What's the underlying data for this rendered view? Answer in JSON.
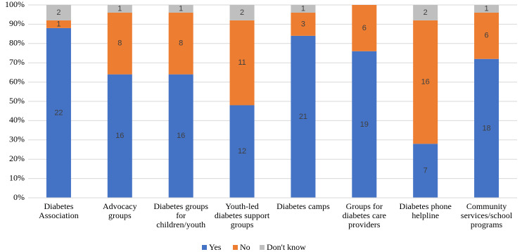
{
  "chart_data": {
    "type": "bar",
    "stacked": true,
    "categories": [
      "Diabetes Association",
      "Advocacy groups",
      "Diabetes groups for children/youth",
      "Youth-led diabetes support groups",
      "Diabetes camps",
      "Groups for diabetes care providers",
      "Diabetes phone helpline",
      "Community services/school programs"
    ],
    "series": [
      {
        "name": "Yes",
        "color": "#4472c4",
        "values": [
          88,
          64,
          64,
          48,
          84,
          76,
          28,
          72
        ],
        "value_labels": [
          "22",
          "16",
          "16",
          "12",
          "21",
          "19",
          "7",
          "18"
        ]
      },
      {
        "name": "No",
        "color": "#ed7d31",
        "values": [
          4,
          32,
          32,
          44,
          12,
          24,
          64,
          24
        ],
        "value_labels": [
          "1",
          "8",
          "8",
          "11",
          "3",
          "6",
          "16",
          "6"
        ]
      },
      {
        "name": "Don't know",
        "color": "#bfbfbf",
        "values": [
          8,
          4,
          4,
          8,
          4,
          0,
          8,
          4
        ],
        "value_labels": [
          "2",
          "1",
          "1",
          "2",
          "1",
          null,
          "2",
          "1"
        ]
      }
    ],
    "ylim": [
      0,
      100
    ],
    "yticks": [
      {
        "value": 0,
        "label": "0%"
      },
      {
        "value": 10,
        "label": "10%"
      },
      {
        "value": 20,
        "label": "20%"
      },
      {
        "value": 30,
        "label": "30%"
      },
      {
        "value": 40,
        "label": "40%"
      },
      {
        "value": 50,
        "label": "50%"
      },
      {
        "value": 60,
        "label": "60%"
      },
      {
        "value": 70,
        "label": "70%"
      },
      {
        "value": 80,
        "label": "80%"
      },
      {
        "value": 90,
        "label": "90%"
      },
      {
        "value": 100,
        "label": "100%"
      }
    ],
    "grid": true,
    "legend": "bottom"
  }
}
